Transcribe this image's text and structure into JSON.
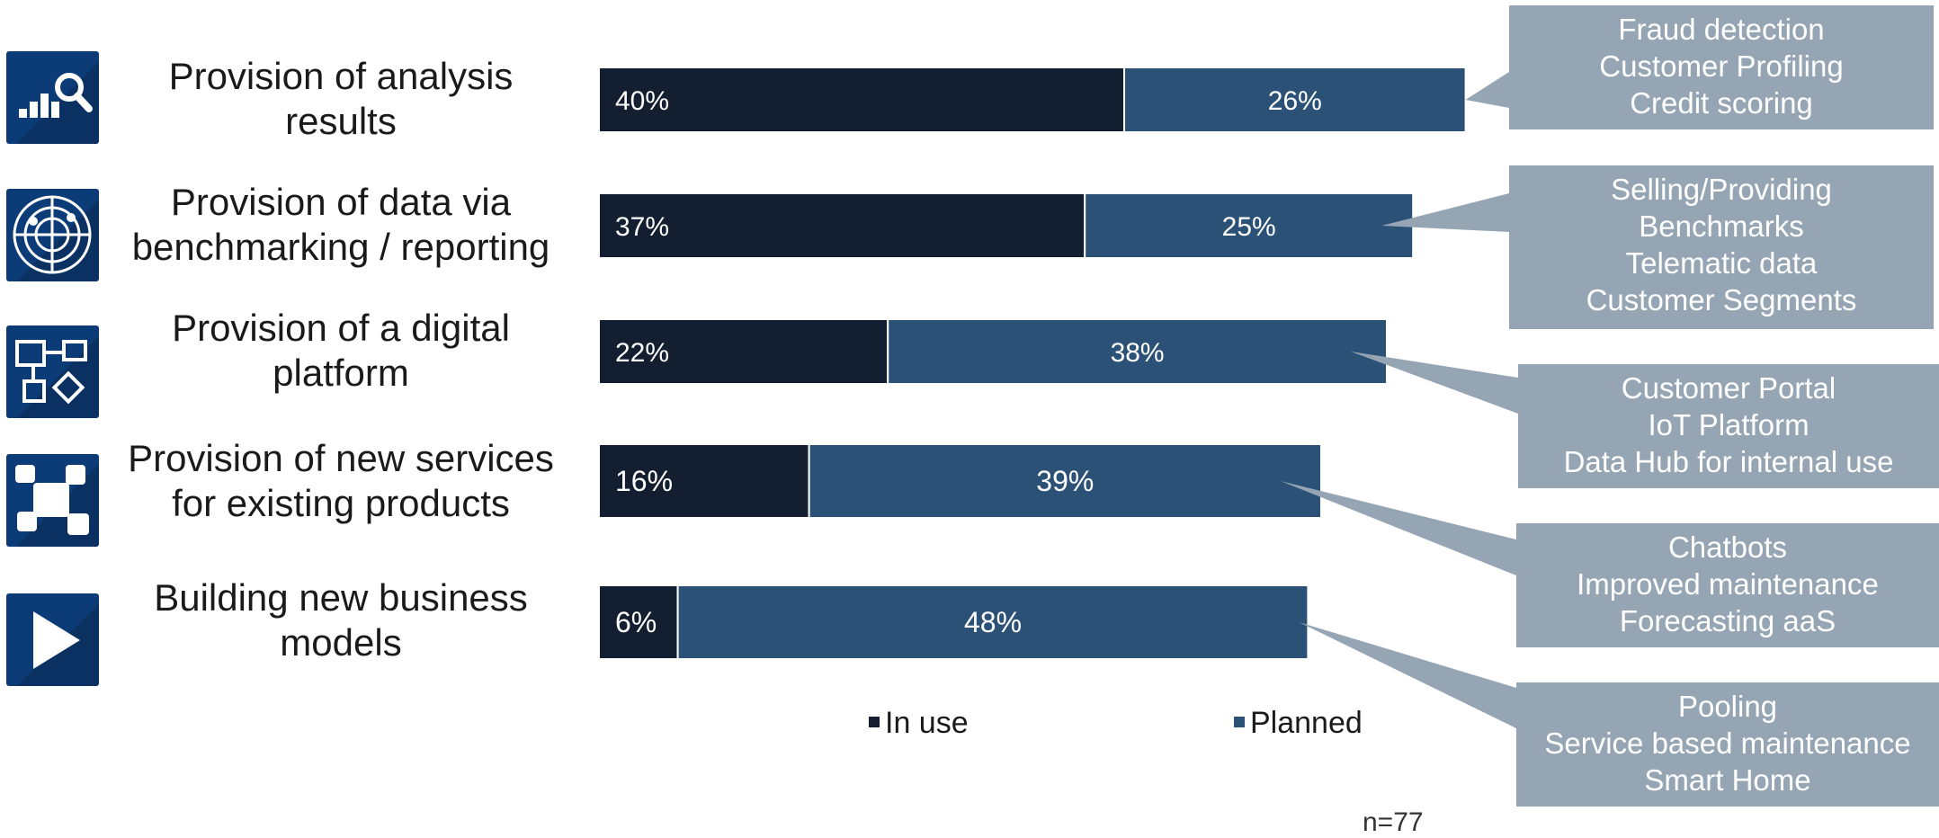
{
  "chart_data": {
    "type": "bar",
    "orientation": "horizontal",
    "stacked": true,
    "categories": [
      "Provision of analysis results",
      "Provision of data via benchmarking / reporting",
      "Provision of a digital platform",
      "Provision of new services for existing products",
      "Building new business models"
    ],
    "series": [
      {
        "name": "In use",
        "color": "#131f30",
        "values": [
          40,
          37,
          22,
          16,
          6
        ],
        "labels": [
          "40%",
          "37%",
          "22%",
          "16%",
          "6%"
        ]
      },
      {
        "name": "Planned",
        "color": "#2c5177",
        "values": [
          26,
          25,
          38,
          39,
          48
        ],
        "labels": [
          "26%",
          "25%",
          "38%",
          "39%",
          "48%"
        ]
      }
    ],
    "xlim": [
      0,
      100
    ],
    "legend_position": "bottom",
    "grid": false
  },
  "categories": [
    {
      "label_lines": [
        "Provision of analysis",
        "results"
      ],
      "icon": "analysis-search-icon"
    },
    {
      "label_lines": [
        "Provision of data via",
        "benchmarking / reporting"
      ],
      "icon": "radar-icon"
    },
    {
      "label_lines": [
        "Provision of a digital",
        "platform"
      ],
      "icon": "platform-shapes-icon"
    },
    {
      "label_lines": [
        "Provision of new services",
        "for existing products"
      ],
      "icon": "puzzle-icon"
    },
    {
      "label_lines": [
        "Building new business",
        "models"
      ],
      "icon": "play-icon"
    }
  ],
  "callouts": [
    {
      "lines": [
        "Fraud detection",
        "Customer Profiling",
        "Credit scoring"
      ]
    },
    {
      "lines": [
        "Selling/Providing",
        "Benchmarks",
        "Telematic data",
        "Customer Segments"
      ]
    },
    {
      "lines": [
        "Customer Portal",
        "IoT Platform",
        "Data Hub for internal use"
      ]
    },
    {
      "lines": [
        "Chatbots",
        "Improved maintenance",
        "Forecasting aaS"
      ]
    },
    {
      "lines": [
        "Pooling",
        "Service based maintenance",
        "Smart Home"
      ]
    }
  ],
  "legend": {
    "in_use": "In use",
    "planned": "Planned"
  },
  "note": "n=77",
  "colors": {
    "in_use": "#131f30",
    "planned": "#2c5177",
    "callout": "#95a5b4",
    "icon_tile": "#0c3c78"
  }
}
